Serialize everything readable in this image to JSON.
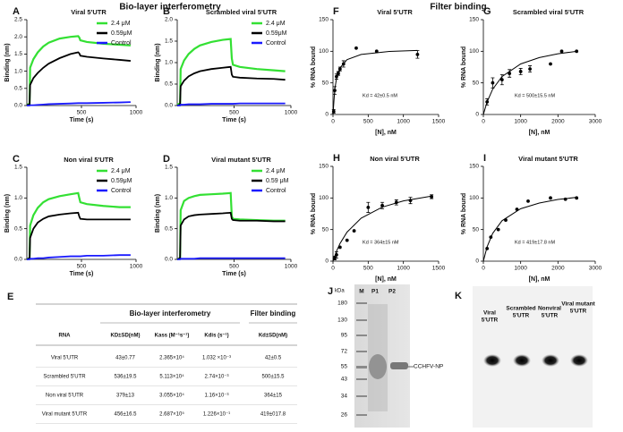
{
  "headers": {
    "left": "Bio-layer interferometry",
    "right": "Filter binding"
  },
  "chart_data": [
    {
      "type": "line",
      "panel": "A",
      "title": "Viral  5'UTR",
      "x_label": "Time (s)",
      "y_label": "Binding (nm)",
      "legend": "upper-right",
      "x": [
        0,
        25,
        30,
        60,
        100,
        150,
        200,
        300,
        400,
        470,
        480,
        490,
        550,
        700,
        850,
        950
      ],
      "series": [
        {
          "name": "2.4 μM",
          "color": "#33e033",
          "values": [
            0.02,
            0.05,
            1.1,
            1.35,
            1.55,
            1.72,
            1.83,
            1.95,
            2.0,
            2.02,
            1.98,
            1.9,
            1.85,
            1.8,
            1.77,
            1.75
          ]
        },
        {
          "name": "0.59μM",
          "color": "#000000",
          "values": [
            0.02,
            0.03,
            0.6,
            0.8,
            0.95,
            1.1,
            1.22,
            1.38,
            1.5,
            1.55,
            1.52,
            1.45,
            1.42,
            1.37,
            1.33,
            1.3
          ]
        },
        {
          "name": "Control",
          "color": "#1a1aff",
          "values": [
            0,
            0,
            0.01,
            0.01,
            0.02,
            0.03,
            0.04,
            0.05,
            0.06,
            0.07,
            0.07,
            0.07,
            0.07,
            0.08,
            0.09,
            0.1
          ]
        }
      ],
      "xlim": [
        0,
        1000
      ],
      "xticks": [
        500,
        1000
      ],
      "ylim": [
        0,
        2.5
      ],
      "yticks": [
        {
          "value": 0,
          "label": "0.0"
        },
        {
          "value": 0.5,
          "label": "0.5"
        },
        {
          "value": 1,
          "label": "1.0"
        },
        {
          "value": 1.5,
          "label": "1.5"
        },
        {
          "value": 2,
          "label": "2.0"
        },
        {
          "value": 2.5,
          "label": "2.5"
        }
      ]
    },
    {
      "type": "line",
      "panel": "B",
      "title": "Scrambled viral  5'UTR",
      "x_label": "Time (s)",
      "y_label": "Binding (nm)",
      "legend": "upper-right",
      "x": [
        0,
        25,
        30,
        60,
        100,
        150,
        200,
        300,
        400,
        470,
        480,
        490,
        550,
        700,
        850,
        950
      ],
      "series": [
        {
          "name": "2.4 μM",
          "color": "#33e033",
          "values": [
            0.02,
            0.05,
            0.85,
            1.05,
            1.2,
            1.32,
            1.4,
            1.48,
            1.53,
            1.55,
            1.1,
            0.95,
            0.9,
            0.85,
            0.82,
            0.8
          ]
        },
        {
          "name": "0.59μM",
          "color": "#000000",
          "values": [
            0,
            0.02,
            0.45,
            0.58,
            0.68,
            0.75,
            0.8,
            0.85,
            0.88,
            0.9,
            0.72,
            0.67,
            0.65,
            0.63,
            0.62,
            0.6
          ]
        },
        {
          "name": "Control",
          "color": "#1a1aff",
          "values": [
            0,
            0,
            0.02,
            0.02,
            0.03,
            0.03,
            0.03,
            0.04,
            0.04,
            0.04,
            0.04,
            0.04,
            0.05,
            0.05,
            0.05,
            0.05
          ]
        }
      ],
      "xlim": [
        0,
        1000
      ],
      "xticks": [
        500,
        1000
      ],
      "ylim": [
        0,
        2
      ],
      "yticks": [
        {
          "value": 0,
          "label": "0.0"
        },
        {
          "value": 0.5,
          "label": "0.5"
        },
        {
          "value": 1,
          "label": "1.0"
        },
        {
          "value": 1.5,
          "label": "1.5"
        },
        {
          "value": 2,
          "label": "2.0"
        }
      ]
    },
    {
      "type": "line",
      "panel": "C",
      "title": "Non viral  5'UTR",
      "x_label": "Time (s)",
      "y_label": "Binding (nm)",
      "legend": "upper-right",
      "x": [
        0,
        25,
        30,
        60,
        100,
        150,
        200,
        300,
        400,
        470,
        480,
        490,
        550,
        700,
        850,
        950
      ],
      "series": [
        {
          "name": "2.4 μM",
          "color": "#33e033",
          "values": [
            0,
            0.02,
            0.55,
            0.72,
            0.84,
            0.93,
            0.98,
            1.03,
            1.06,
            1.08,
            1.0,
            0.93,
            0.9,
            0.87,
            0.85,
            0.85
          ]
        },
        {
          "name": "0.59μM",
          "color": "#000000",
          "values": [
            0,
            0.02,
            0.35,
            0.5,
            0.6,
            0.66,
            0.7,
            0.73,
            0.75,
            0.76,
            0.7,
            0.66,
            0.65,
            0.65,
            0.65,
            0.65
          ]
        },
        {
          "name": "Control",
          "color": "#1a1aff",
          "values": [
            0,
            0,
            0.01,
            0.01,
            0.02,
            0.02,
            0.03,
            0.04,
            0.05,
            0.05,
            0.05,
            0.05,
            0.06,
            0.06,
            0.07,
            0.07
          ]
        }
      ],
      "xlim": [
        0,
        1000
      ],
      "xticks": [
        500,
        1000
      ],
      "ylim": [
        0,
        1.5
      ],
      "yticks": [
        {
          "value": 0,
          "label": "0.0"
        },
        {
          "value": 0.5,
          "label": "0.5"
        },
        {
          "value": 1,
          "label": "1.0"
        },
        {
          "value": 1.5,
          "label": "1.5"
        }
      ]
    },
    {
      "type": "line",
      "panel": "D",
      "title": "Viral mutant  5'UTR",
      "x_label": "Time (s)",
      "y_label": "Binding (nm)",
      "legend": "upper-right",
      "x": [
        0,
        25,
        30,
        60,
        100,
        150,
        200,
        300,
        400,
        470,
        480,
        490,
        550,
        700,
        850,
        950
      ],
      "series": [
        {
          "name": "2.4 μM",
          "color": "#33e033",
          "values": [
            0,
            0.02,
            0.8,
            0.95,
            1.0,
            1.03,
            1.05,
            1.06,
            1.07,
            1.08,
            0.7,
            0.66,
            0.65,
            0.64,
            0.63,
            0.63
          ]
        },
        {
          "name": "0.59 μM",
          "color": "#000000",
          "values": [
            0,
            0.02,
            0.55,
            0.65,
            0.7,
            0.72,
            0.73,
            0.74,
            0.75,
            0.76,
            0.66,
            0.64,
            0.63,
            0.63,
            0.62,
            0.62
          ]
        },
        {
          "name": "Control",
          "color": "#1a1aff",
          "values": [
            0,
            0,
            0.01,
            0.01,
            0.01,
            0.01,
            0.02,
            0.02,
            0.02,
            0.02,
            0.02,
            0.02,
            0.02,
            0.02,
            0.02,
            0.02
          ]
        }
      ],
      "xlim": [
        0,
        1000
      ],
      "xticks": [
        500,
        1000
      ],
      "ylim": [
        0,
        1.5
      ],
      "yticks": [
        {
          "value": 0,
          "label": "0.0"
        },
        {
          "value": 0.5,
          "label": "0.5"
        },
        {
          "value": 1,
          "label": "1.0"
        },
        {
          "value": 1.5,
          "label": "1.5"
        }
      ]
    },
    {
      "type": "scatter",
      "panel": "F",
      "title": "Viral  5'UTR",
      "x_label": "[N], nM",
      "y_label": "% RNA bound",
      "annotation": "Kd = 42±0.5 nM",
      "color": "#000000",
      "x": [
        10,
        25,
        50,
        75,
        100,
        150,
        330,
        620,
        1200
      ],
      "values": [
        5,
        38,
        60,
        65,
        72,
        80,
        105,
        100,
        95
      ],
      "errors": [
        3,
        6,
        4,
        3,
        3,
        5,
        null,
        null,
        6
      ],
      "fit": {
        "x": [
          0,
          25,
          50,
          100,
          200,
          400,
          800,
          1200
        ],
        "values": [
          0,
          39.2,
          57,
          73.9,
          86.8,
          95,
          99.8,
          101.4
        ]
      },
      "xlim": [
        0,
        1500
      ],
      "xticks": [
        0,
        500,
        1000,
        1500
      ],
      "ylim": [
        0,
        150
      ],
      "yticks": [
        0,
        50,
        100,
        150
      ]
    },
    {
      "type": "scatter",
      "panel": "G",
      "title": "Scrambled viral  5'UTR",
      "x_label": "[N], nM",
      "y_label": "% RNA bound",
      "annotation": "Kd = 500±15.5 nM",
      "color": "#000000",
      "x": [
        100,
        250,
        500,
        700,
        1000,
        1250,
        1800,
        2100,
        2500
      ],
      "values": [
        20,
        50,
        55,
        65,
        68,
        72,
        80,
        100,
        100
      ],
      "errors": [
        5,
        8,
        8,
        6,
        5,
        5,
        null,
        null,
        null
      ],
      "fit": {
        "x": [
          0,
          100,
          250,
          500,
          1000,
          1500,
          2000,
          2500
        ],
        "values": [
          0,
          20,
          40,
          60,
          80,
          90,
          96,
          100
        ]
      },
      "xlim": [
        0,
        3000
      ],
      "xticks": [
        0,
        1000,
        2000,
        3000
      ],
      "ylim": [
        0,
        150
      ],
      "yticks": [
        0,
        50,
        100,
        150
      ]
    },
    {
      "type": "scatter",
      "panel": "H",
      "title": "Non viral  5'UTR",
      "x_label": "[N], nM",
      "y_label": "% RNA bound",
      "annotation": "Kd = 364±15 nM",
      "color": "#000000",
      "x": [
        25,
        50,
        100,
        200,
        300,
        500,
        700,
        900,
        1100,
        1400
      ],
      "values": [
        5,
        10,
        22,
        33,
        48,
        85,
        88,
        93,
        96,
        102
      ],
      "errors": [
        3,
        5,
        null,
        null,
        null,
        8,
        5,
        4,
        5,
        3
      ],
      "fit": {
        "x": [
          0,
          50,
          100,
          200,
          400,
          700,
          1000,
          1400
        ],
        "values": [
          0,
          15.7,
          28,
          46,
          68,
          85.5,
          95.3,
          103
        ]
      },
      "xlim": [
        0,
        1500
      ],
      "xticks": [
        0,
        500,
        1000,
        1500
      ],
      "ylim": [
        0,
        150
      ],
      "yticks": [
        0,
        50,
        100,
        150
      ]
    },
    {
      "type": "scatter",
      "panel": "I",
      "title": "Viral mutant  5'UTR",
      "x_label": "[N], nM",
      "y_label": "% RNA bound",
      "annotation": "Kd = 419±17.8 nM",
      "color": "#000000",
      "x": [
        100,
        200,
        400,
        600,
        900,
        1200,
        1800,
        2200,
        2500
      ],
      "values": [
        20,
        38,
        50,
        65,
        82,
        95,
        100,
        98,
        100
      ],
      "errors": [
        null,
        null,
        null,
        null,
        null,
        null,
        null,
        null,
        null
      ],
      "fit": {
        "x": [
          0,
          100,
          250,
          500,
          1000,
          1500,
          2000,
          2500
        ],
        "values": [
          0,
          22.7,
          44,
          64,
          83,
          92,
          97.6,
          101
        ]
      },
      "xlim": [
        0,
        3000
      ],
      "xticks": [
        0,
        1000,
        2000,
        3000
      ],
      "ylim": [
        0,
        150
      ],
      "yticks": [
        0,
        50,
        100,
        150
      ]
    }
  ],
  "table": {
    "panel": "E",
    "group_left": "Bio-layer interferometry",
    "group_right": "Filter binding",
    "columns": [
      "RNA",
      "KD±SD(nM)",
      "Kass (M⁻¹s⁻¹)",
      "Kdis (s⁻¹)",
      "Kd±SD(nM)"
    ],
    "rows": [
      [
        "Viral 5'UTR",
        "43±0.77",
        "2.365×10⁴",
        "1.032 ×10⁻³",
        "42±0.5"
      ],
      [
        "Scrambled 5'UTR",
        "536±19.5",
        "5.113×10⁴",
        "2.74×10⁻³",
        "500±15.5"
      ],
      [
        "Non viral 5'UTR",
        "379±13",
        "3.055×10⁴",
        "1.16×10⁻³",
        "364±15"
      ],
      [
        "Viral mutant 5'UTR",
        "456±16.5",
        "2.687×10⁵",
        "1.226×10⁻¹",
        "419±017.8"
      ]
    ]
  },
  "gel": {
    "panel": "J",
    "unit": "kDa",
    "lanes": [
      "M",
      "P1",
      "P2"
    ],
    "markers": [
      180,
      130,
      95,
      72,
      55,
      43,
      34,
      26
    ],
    "band_label": "CCHFV-NP"
  },
  "blot": {
    "panel": "K",
    "lanes": [
      [
        "Viral",
        "5'UTR"
      ],
      [
        "Scrambled",
        "5'UTR"
      ],
      [
        "Nonviral",
        "5'UTR"
      ],
      [
        "Viral mutant",
        "5'UTR"
      ]
    ]
  }
}
